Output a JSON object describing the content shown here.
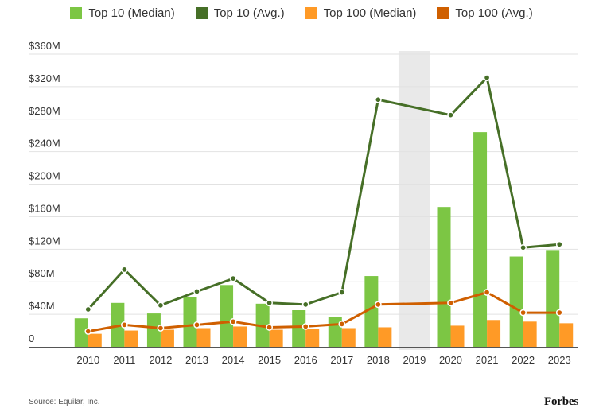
{
  "colors": {
    "top10_median": "#7cc644",
    "top10_avg": "#466f27",
    "top100_median": "#ff9a26",
    "top100_avg": "#cf5f00",
    "gap_band": "#e9e9e9",
    "grid": "#e2e2e2"
  },
  "legend": [
    {
      "label": "Top 10 (Median)",
      "color": "#7cc644"
    },
    {
      "label": "Top 10 (Avg.)",
      "color": "#466f27"
    },
    {
      "label": "Top 100 (Median)",
      "color": "#ff9a26"
    },
    {
      "label": "Top 100 (Avg.)",
      "color": "#cf5f00"
    }
  ],
  "source": "Source:  Equilar, Inc.",
  "brand": "Forbes",
  "chart_data": {
    "type": "bar",
    "categories": [
      "2010",
      "2011",
      "2012",
      "2013",
      "2014",
      "2015",
      "2016",
      "2017",
      "2018",
      "2019",
      "2020",
      "2021",
      "2022",
      "2023"
    ],
    "y_tick_labels": [
      "0",
      "$40M",
      "$80M",
      "$120M",
      "$160M",
      "$200M",
      "$240M",
      "$280M",
      "$320M",
      "$360M"
    ],
    "y_tick_values": [
      0,
      40,
      80,
      120,
      160,
      200,
      240,
      280,
      320,
      360
    ],
    "ylim": [
      0,
      360
    ],
    "grid": true,
    "legend_position": "top",
    "gap_category": "2019",
    "bars": [
      {
        "name": "Top 10 (Median)",
        "color": "#7cc644",
        "values": [
          35,
          54,
          41,
          61,
          76,
          53,
          45,
          37,
          87,
          null,
          172,
          264,
          111,
          119
        ]
      },
      {
        "name": "Top 100 (Median)",
        "color": "#ff9a26",
        "values": [
          16,
          20,
          21,
          23,
          25,
          21,
          22,
          23,
          24,
          null,
          26,
          33,
          31,
          29
        ]
      }
    ],
    "lines": [
      {
        "name": "Top 10 (Avg.)",
        "color": "#466f27",
        "values": [
          46,
          95,
          51,
          68,
          84,
          54,
          52,
          67,
          304,
          null,
          285,
          331,
          122,
          126
        ]
      },
      {
        "name": "Top 100 (Avg.)",
        "color": "#cf5f00",
        "values": [
          19,
          27,
          23,
          27,
          31,
          24,
          25,
          28,
          52,
          null,
          54,
          67,
          42,
          42
        ]
      }
    ]
  }
}
